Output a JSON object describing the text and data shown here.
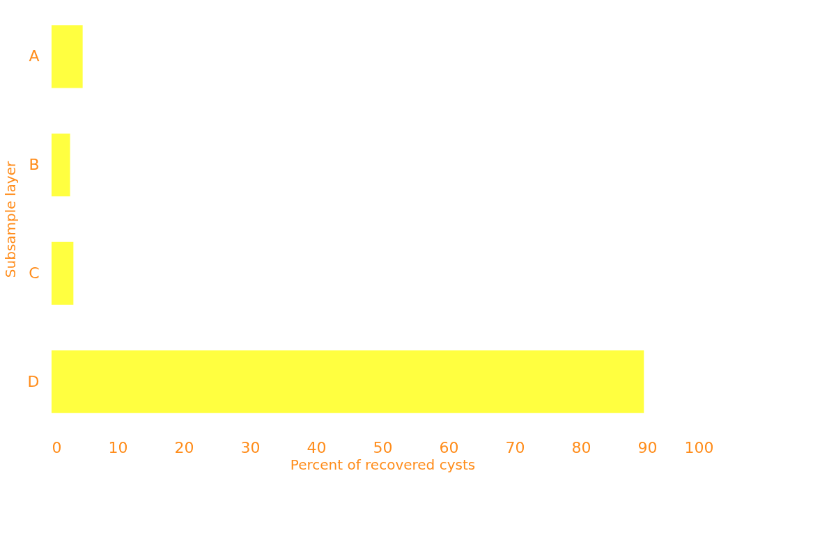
{
  "chart_data": {
    "type": "bar",
    "orientation": "horizontal",
    "xlabel": "Percent of recovered cysts",
    "ylabel": "Subsample layer",
    "categories": [
      "A",
      "B",
      "C",
      "D"
    ],
    "values": [
      4.7,
      2.8,
      3.3,
      89.5
    ],
    "color": "#ffff00",
    "xlim": [
      0,
      100
    ],
    "xticks": [
      0,
      10,
      20,
      30,
      40,
      50,
      60,
      70,
      80,
      90,
      100
    ],
    "grid": false
  }
}
